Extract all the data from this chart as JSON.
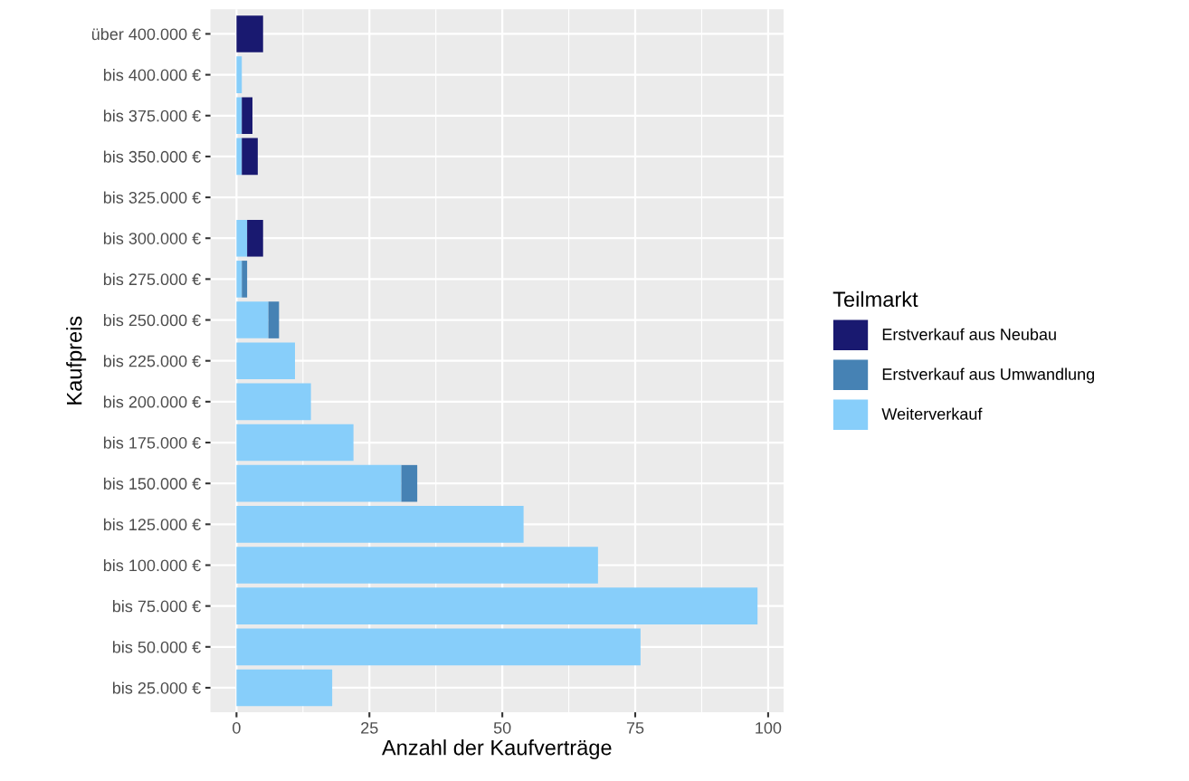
{
  "chart_data": {
    "type": "bar",
    "orientation": "horizontal",
    "stacked": true,
    "xlabel": "Anzahl der Kaufverträge",
    "ylabel": "Kaufpreis",
    "legend_title": "Teilmarkt",
    "categories": [
      "über 400.000 €",
      "bis 400.000 €",
      "bis 375.000 €",
      "bis 350.000 €",
      "bis 325.000 €",
      "bis 300.000 €",
      "bis 275.000 €",
      "bis 250.000 €",
      "bis 225.000 €",
      "bis 200.000 €",
      "bis 175.000 €",
      "bis 150.000 €",
      "bis 125.000 €",
      "bis 100.000 €",
      "bis 75.000 €",
      "bis 50.000 €",
      "bis 25.000 €"
    ],
    "series": [
      {
        "name": "Weiterverkauf",
        "color": "#87cefa",
        "values": [
          0,
          1,
          1,
          1,
          0,
          2,
          1,
          6,
          11,
          14,
          22,
          31,
          54,
          68,
          98,
          76,
          18
        ]
      },
      {
        "name": "Erstverkauf aus Umwandlung",
        "color": "#4682b4",
        "values": [
          0,
          0,
          0,
          0,
          0,
          0,
          1,
          2,
          0,
          0,
          0,
          3,
          0,
          0,
          0,
          0,
          0
        ]
      },
      {
        "name": "Erstverkauf aus Neubau",
        "color": "#191970",
        "values": [
          5,
          0,
          2,
          3,
          0,
          3,
          0,
          0,
          0,
          0,
          0,
          0,
          0,
          0,
          0,
          0,
          0
        ]
      }
    ],
    "xlim": [
      -4.9,
      102.9
    ],
    "xticks": [
      0,
      25,
      50,
      75,
      100
    ],
    "grid": true,
    "legend": "right"
  }
}
